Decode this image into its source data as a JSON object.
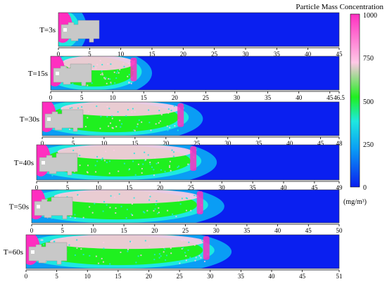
{
  "figure": {
    "title": "Particle Mass Concentration",
    "colorbar": {
      "unit": "(mg/m³)",
      "ticks": [
        0,
        250,
        500,
        750,
        1000
      ],
      "colors": [
        "#0a1ff0",
        "#0a9df5",
        "#1ee8e0",
        "#1ff01f",
        "#ffc8e6",
        "#ff2ec0"
      ]
    },
    "panels": [
      {
        "label": "T=3s",
        "x_max": 45,
        "x_ticks": [
          "0",
          "5",
          "10",
          "15",
          "20",
          "25",
          "30",
          "35",
          "40",
          "45"
        ],
        "front_m": 3
      },
      {
        "label": "T=15s",
        "x_max": 46.5,
        "x_ticks": [
          "0",
          "5",
          "10",
          "15",
          "20",
          "25",
          "30",
          "35",
          "40",
          "45",
          "46.5"
        ],
        "front_m": 14
      },
      {
        "label": "T=30s",
        "x_max": 48,
        "x_ticks": [
          "0",
          "5",
          "10",
          "15",
          "20",
          "25",
          "30",
          "35",
          "40",
          "45",
          "48"
        ],
        "front_m": 23
      },
      {
        "label": "T=40s",
        "x_max": 49,
        "x_ticks": [
          "0",
          "5",
          "10",
          "15",
          "20",
          "25",
          "30",
          "35",
          "40",
          "45",
          "49"
        ],
        "front_m": 26
      },
      {
        "label": "T=50s",
        "x_max": 50,
        "x_ticks": [
          "0",
          "5",
          "10",
          "15",
          "20",
          "25",
          "30",
          "35",
          "40",
          "45",
          "50"
        ],
        "front_m": 28
      },
      {
        "label": "T=60s",
        "x_max": 51,
        "x_ticks": [
          "0",
          "5",
          "10",
          "15",
          "20",
          "25",
          "30",
          "35",
          "40",
          "45",
          "51"
        ],
        "front_m": 30
      }
    ]
  }
}
